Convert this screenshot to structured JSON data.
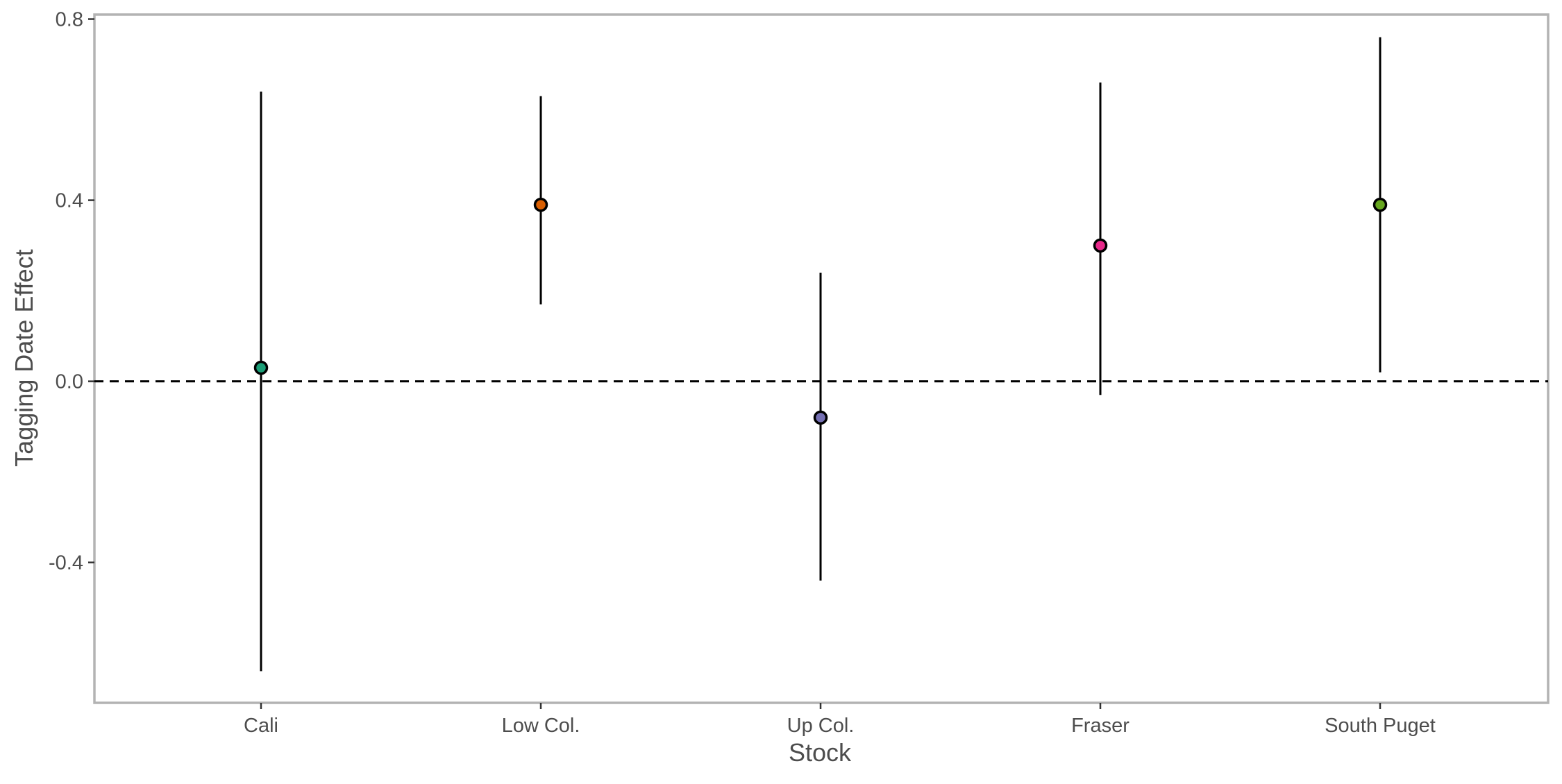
{
  "chart_data": {
    "type": "scatter",
    "title": "",
    "xlabel": "Stock",
    "ylabel": "Tagging Date Effect",
    "categories": [
      "Cali",
      "Low Col.",
      "Up Col.",
      "Fraser",
      "South Puget"
    ],
    "series": [
      {
        "points": [
          {
            "category": "Cali",
            "y": 0.03,
            "lower": -0.64,
            "upper": 0.64,
            "color": "#1B9E77"
          },
          {
            "category": "Low Col.",
            "y": 0.39,
            "lower": 0.17,
            "upper": 0.63,
            "color": "#D95F02"
          },
          {
            "category": "Up Col.",
            "y": -0.08,
            "lower": -0.44,
            "upper": 0.24,
            "color": "#7570B3"
          },
          {
            "category": "Fraser",
            "y": 0.3,
            "lower": -0.03,
            "upper": 0.66,
            "color": "#E7298A"
          },
          {
            "category": "South Puget",
            "y": 0.39,
            "lower": 0.02,
            "upper": 0.76,
            "color": "#66A61E"
          }
        ]
      }
    ],
    "yticks": [
      -0.4,
      0.0,
      0.4,
      0.8
    ],
    "ytick_labels": [
      "-0.4",
      "0.0",
      "0.4",
      "0.8"
    ],
    "ylim": [
      -0.71,
      0.81
    ],
    "reference_line": {
      "y": 0.0,
      "style": "dashed",
      "color": "#000000"
    },
    "grid": false,
    "legend": "none",
    "panel_border_color": "#b3b3b3"
  }
}
